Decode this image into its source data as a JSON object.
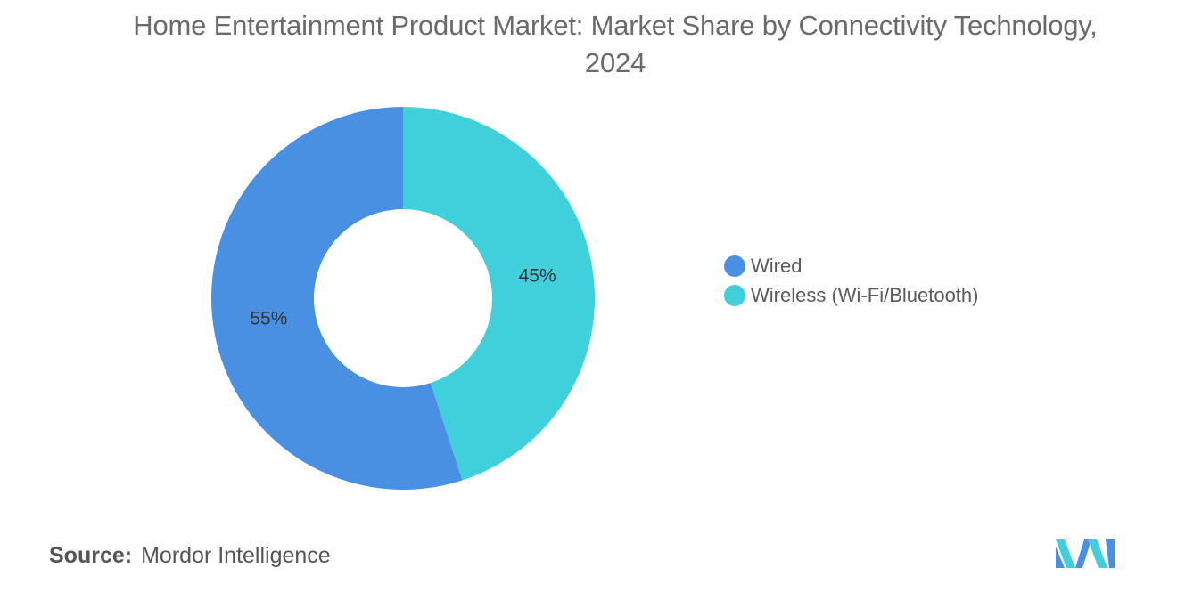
{
  "chart_data": {
    "type": "pie",
    "donut": true,
    "title": "Home Entertainment Product Market: Market Share by Connectivity Technology, 2024",
    "slices": [
      {
        "label": "Wired",
        "value": 55,
        "display": "55%",
        "color": "#4a90e2"
      },
      {
        "label": "Wireless (Wi-Fi/Bluetooth)",
        "value": 45,
        "display": "45%",
        "color": "#40d0db"
      }
    ],
    "legend_position": "right"
  },
  "source": {
    "label": "Source:",
    "text": "Mordor Intelligence"
  },
  "logo": {
    "icon": "mordor-intelligence-logo-icon",
    "colors": [
      "#4a90e2",
      "#40d0db"
    ]
  }
}
